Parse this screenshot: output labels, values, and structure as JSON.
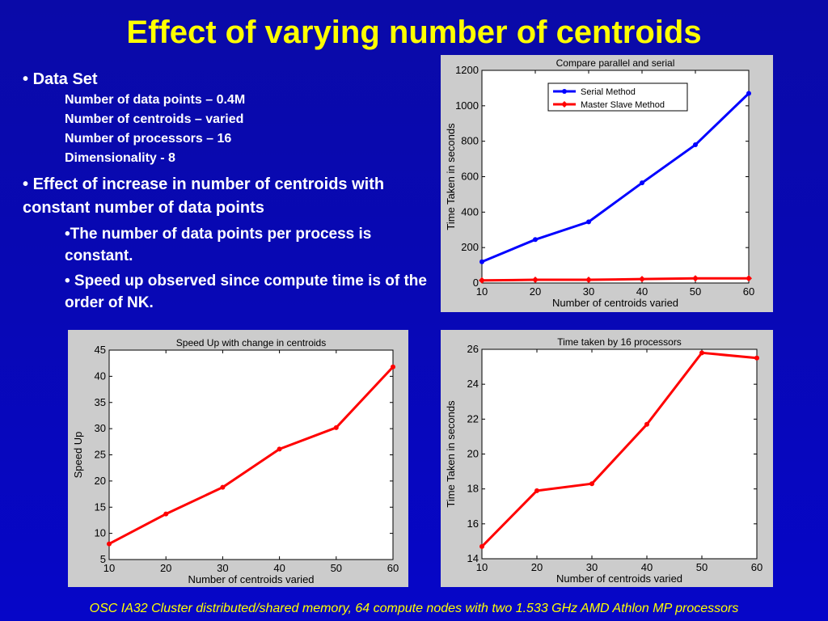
{
  "title": "Effect of varying number of centroids",
  "bullets": {
    "data_set_label": "Data Set",
    "data_set_items": [
      "Number of data points – 0.4M",
      "Number of centroids – varied",
      "Number of processors – 16",
      "Dimensionality - 8"
    ],
    "effect_label": "Effect of increase in number of centroids with constant number of data points",
    "effect_items": [
      "•The number of data points per process is constant.",
      "• Speed up observed since compute time is of the order of NK."
    ]
  },
  "footer": "OSC IA32 Cluster distributed/shared memory, 64 compute nodes with two 1.533 GHz AMD Athlon MP processors",
  "chart_data": [
    {
      "type": "line",
      "title": "Compare parallel and serial",
      "xlabel": "Number of centroids varied",
      "ylabel": "Time Taken in seconds",
      "x": [
        10,
        20,
        30,
        40,
        50,
        60
      ],
      "xlim": [
        10,
        60
      ],
      "ylim": [
        0,
        1200
      ],
      "xticks": [
        10,
        20,
        30,
        40,
        50,
        60
      ],
      "yticks": [
        0,
        200,
        400,
        600,
        800,
        1000,
        1200
      ],
      "grid": false,
      "legend": "top-left",
      "series": [
        {
          "name": "Serial Method",
          "color": "#0000ff",
          "marker": "dot",
          "values": [
            120,
            245,
            345,
            565,
            780,
            1070
          ]
        },
        {
          "name": "Master Slave Method",
          "color": "#ff0000",
          "marker": "diamond",
          "values": [
            15,
            18,
            18,
            22,
            26,
            26
          ]
        }
      ]
    },
    {
      "type": "line",
      "title": "Speed Up with change in centroids",
      "xlabel": "Number of centroids varied",
      "ylabel": "Speed Up",
      "x": [
        10,
        20,
        30,
        40,
        50,
        60
      ],
      "xlim": [
        10,
        60
      ],
      "ylim": [
        5,
        45
      ],
      "xticks": [
        10,
        20,
        30,
        40,
        50,
        60
      ],
      "yticks": [
        5,
        10,
        15,
        20,
        25,
        30,
        35,
        40,
        45
      ],
      "grid": false,
      "series": [
        {
          "color": "#ff0000",
          "marker": "dot",
          "values": [
            8.0,
            13.7,
            18.8,
            26.1,
            30.2,
            41.8
          ]
        }
      ]
    },
    {
      "type": "line",
      "title": "Time taken by 16 processors",
      "xlabel": "Number of centroids varied",
      "ylabel": "Time Taken in seconds",
      "x": [
        10,
        20,
        30,
        40,
        50,
        60
      ],
      "xlim": [
        10,
        60
      ],
      "ylim": [
        14,
        26
      ],
      "xticks": [
        10,
        20,
        30,
        40,
        50,
        60
      ],
      "yticks": [
        14,
        16,
        18,
        20,
        22,
        24,
        26
      ],
      "grid": false,
      "series": [
        {
          "color": "#ff0000",
          "marker": "dot",
          "values": [
            14.7,
            17.9,
            18.3,
            21.7,
            25.8,
            25.5
          ]
        }
      ]
    }
  ]
}
